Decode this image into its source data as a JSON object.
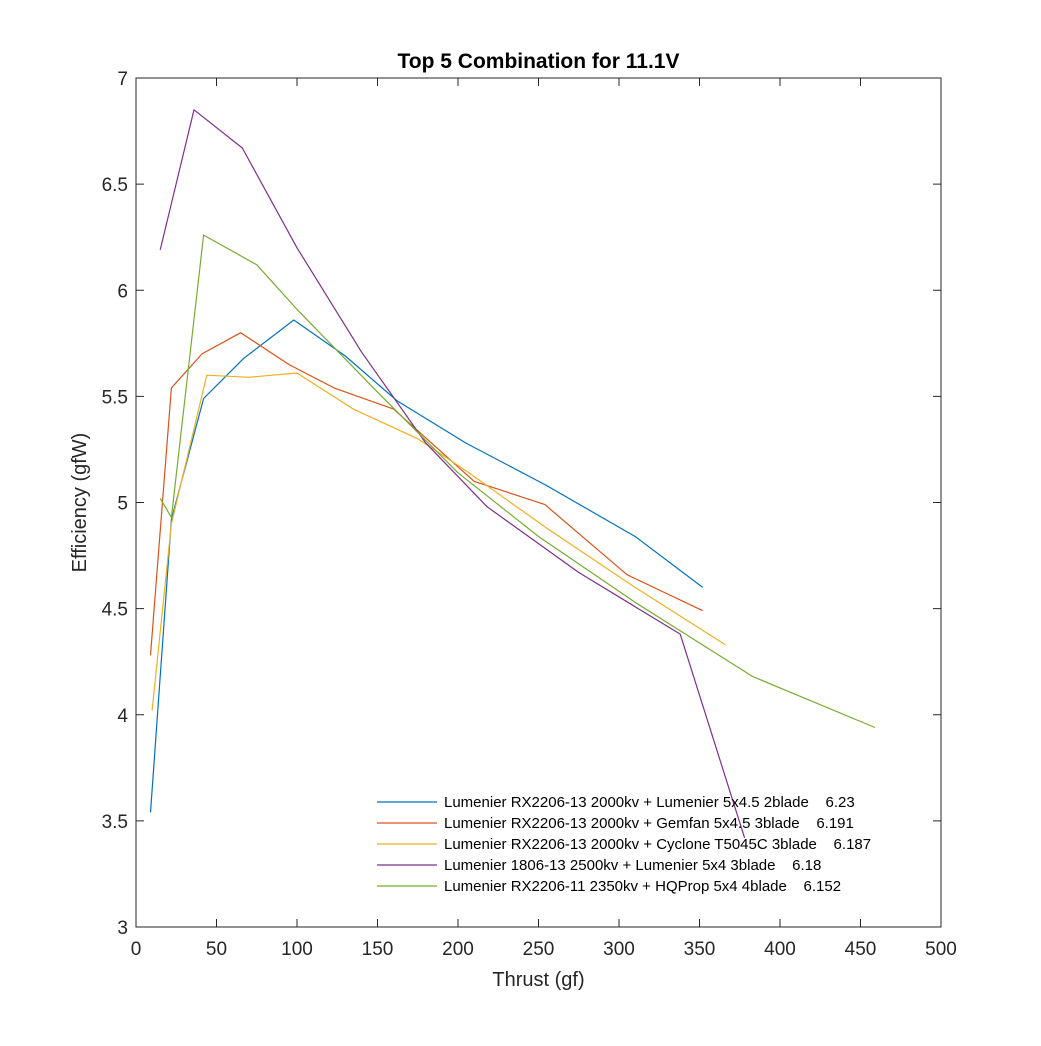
{
  "chart_data": {
    "type": "line",
    "title": "Top 5 Combination for 11.1V",
    "xlabel": "Thrust (gf)",
    "ylabel": "Efficiency (gfW)",
    "xlim": [
      0,
      500
    ],
    "ylim": [
      3,
      7
    ],
    "xticks": [
      0,
      50,
      100,
      150,
      200,
      250,
      300,
      350,
      400,
      450,
      500
    ],
    "yticks": [
      3,
      3.5,
      4,
      4.5,
      5,
      5.5,
      6,
      6.5,
      7
    ],
    "grid": false,
    "legend_position": "bottom-right",
    "series": [
      {
        "name": "Lumenier RX2206-13 2000kv + Lumenier 5x4.5 2blade    6.23",
        "color": "#0072BD",
        "x": [
          9,
          22,
          42,
          67,
          98,
          130,
          162,
          205,
          255,
          310,
          352
        ],
        "y": [
          3.54,
          4.92,
          5.49,
          5.68,
          5.86,
          5.69,
          5.48,
          5.28,
          5.08,
          4.84,
          4.6
        ]
      },
      {
        "name": "Lumenier RX2206-13 2000kv + Gemfan 5x4.5 3blade    6.191",
        "color": "#D95319",
        "x": [
          9,
          22,
          41,
          65,
          95,
          123,
          160,
          210,
          254,
          305,
          352
        ],
        "y": [
          4.28,
          5.54,
          5.7,
          5.8,
          5.65,
          5.54,
          5.44,
          5.1,
          4.99,
          4.66,
          4.49
        ]
      },
      {
        "name": "Lumenier RX2206-13 2000kv + Cyclone T5045C 3blade    6.187",
        "color": "#EDB120",
        "x": [
          10,
          22,
          44,
          70,
          100,
          135,
          175,
          205,
          255,
          310,
          366
        ],
        "y": [
          4.02,
          4.9,
          5.6,
          5.59,
          5.61,
          5.44,
          5.3,
          5.15,
          4.88,
          4.6,
          4.33
        ]
      },
      {
        "name": "Lumenier 1806-13 2500kv + Lumenier 5x4 3blade    6.18",
        "color": "#7E2F8E",
        "x": [
          15,
          36,
          66,
          100,
          140,
          180,
          218,
          275,
          338,
          378
        ],
        "y": [
          6.19,
          6.85,
          6.67,
          6.2,
          5.71,
          5.28,
          4.98,
          4.67,
          4.38,
          3.42
        ]
      },
      {
        "name": "Lumenier RX2206-11 2350kv + HQProp 5x4 4blade    6.152",
        "color": "#77AC30",
        "x": [
          15,
          22,
          42,
          75,
          100,
          150,
          200,
          250,
          310,
          383,
          459
        ],
        "y": [
          5.02,
          4.93,
          6.26,
          6.12,
          5.91,
          5.52,
          5.14,
          4.84,
          4.53,
          4.18,
          3.94
        ]
      }
    ]
  }
}
